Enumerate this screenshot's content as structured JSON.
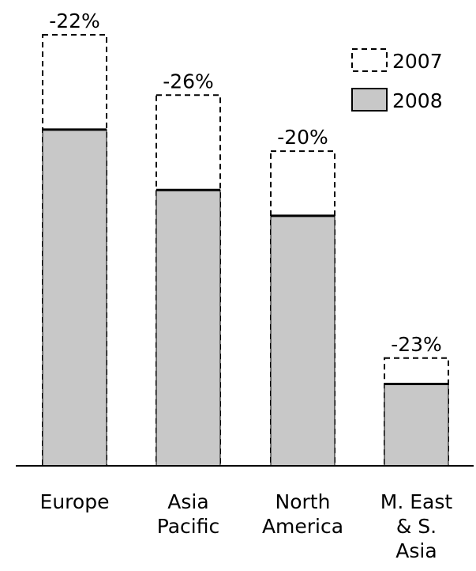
{
  "chart_data": {
    "type": "bar",
    "categories": [
      [
        "Europe"
      ],
      [
        "Asia",
        "Pacific"
      ],
      [
        "North",
        "America"
      ],
      [
        "M. East",
        "& S.",
        "Asia"
      ]
    ],
    "series": [
      {
        "name": "2007",
        "values": [
          100,
          86,
          73,
          25
        ],
        "style": "dashed-outline"
      },
      {
        "name": "2008",
        "values": [
          78,
          64,
          58,
          19
        ],
        "style": "filled"
      }
    ],
    "annotations": [
      "-22%",
      "-26%",
      "-20%",
      "-23%"
    ],
    "ylim": [
      0,
      100
    ],
    "legend": "top-right",
    "grid": false,
    "colors": {
      "fill_2008": "#c8c8c8",
      "stroke": "#000000"
    }
  }
}
